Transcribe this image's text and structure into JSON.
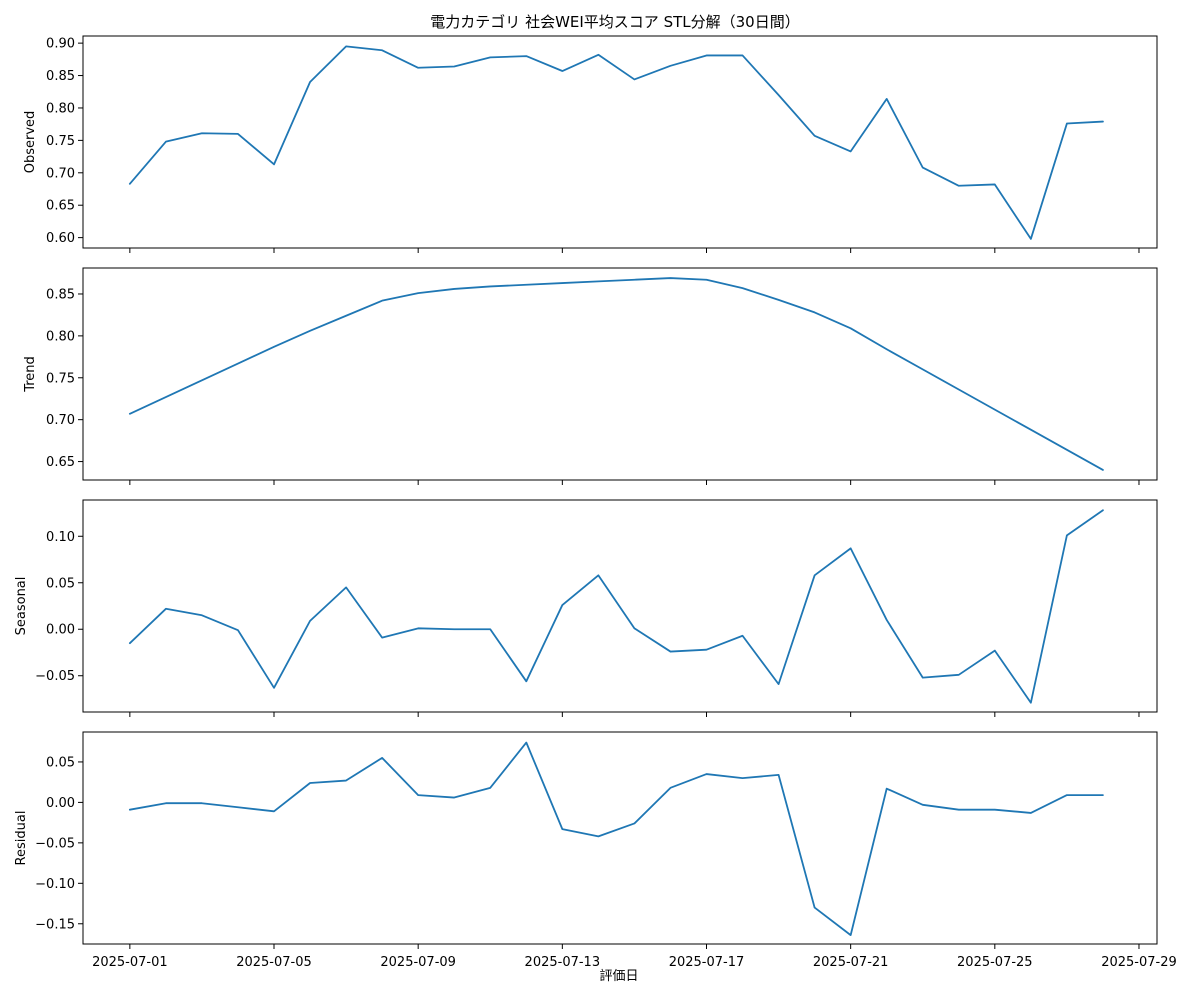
{
  "chart_data": {
    "type": "line",
    "title": "電力カテゴリ 社会WEI平均スコア STL分解（30日間）",
    "xlabel": "評価日",
    "line_color": "#1f77b4",
    "x": [
      "2025-07-01",
      "2025-07-02",
      "2025-07-03",
      "2025-07-04",
      "2025-07-05",
      "2025-07-06",
      "2025-07-07",
      "2025-07-08",
      "2025-07-09",
      "2025-07-10",
      "2025-07-11",
      "2025-07-12",
      "2025-07-13",
      "2025-07-14",
      "2025-07-15",
      "2025-07-16",
      "2025-07-17",
      "2025-07-18",
      "2025-07-19",
      "2025-07-20",
      "2025-07-21",
      "2025-07-22",
      "2025-07-23",
      "2025-07-24",
      "2025-07-25",
      "2025-07-26",
      "2025-07-27",
      "2025-07-28"
    ],
    "xlim": [
      "2025-06-29.7",
      "2025-07-29.5"
    ],
    "xticks": [
      "2025-07-01",
      "2025-07-05",
      "2025-07-09",
      "2025-07-13",
      "2025-07-17",
      "2025-07-21",
      "2025-07-25",
      "2025-07-29"
    ],
    "panels": [
      {
        "ylabel": "Observed",
        "ylim": [
          0.584,
          0.911
        ],
        "yticks": [
          0.6,
          0.65,
          0.7,
          0.75,
          0.8,
          0.85,
          0.9
        ],
        "ytick_labels": [
          "0.60",
          "0.65",
          "0.70",
          "0.75",
          "0.80",
          "0.85",
          "0.90"
        ],
        "values": [
          0.683,
          0.748,
          0.761,
          0.76,
          0.713,
          0.84,
          0.895,
          0.889,
          0.862,
          0.864,
          0.878,
          0.88,
          0.857,
          0.882,
          0.844,
          0.865,
          0.881,
          0.881,
          0.82,
          0.757,
          0.733,
          0.814,
          0.708,
          0.68,
          0.682,
          0.598,
          0.776,
          0.779
        ]
      },
      {
        "ylabel": "Trend",
        "ylim": [
          0.628,
          0.881
        ],
        "yticks": [
          0.65,
          0.7,
          0.75,
          0.8,
          0.85
        ],
        "ytick_labels": [
          "0.65",
          "0.70",
          "0.75",
          "0.80",
          "0.85"
        ],
        "values": [
          0.707,
          0.727,
          0.747,
          0.767,
          0.787,
          0.806,
          0.824,
          0.842,
          0.851,
          0.856,
          0.859,
          0.861,
          0.863,
          0.865,
          0.867,
          0.869,
          0.867,
          0.857,
          0.843,
          0.828,
          0.809,
          0.784,
          0.76,
          0.736,
          0.712,
          0.688,
          0.664,
          0.64
        ]
      },
      {
        "ylabel": "Seasonal",
        "ylim": [
          -0.089,
          0.139
        ],
        "yticks": [
          -0.05,
          0.0,
          0.05,
          0.1
        ],
        "ytick_labels": [
          "−0.05",
          "0.00",
          "0.05",
          "0.10"
        ],
        "values": [
          -0.015,
          0.022,
          0.015,
          -0.001,
          -0.063,
          0.009,
          0.045,
          -0.009,
          0.001,
          0.0,
          0.0,
          -0.056,
          0.026,
          0.058,
          0.001,
          -0.024,
          -0.022,
          -0.007,
          -0.059,
          0.058,
          0.087,
          0.01,
          -0.052,
          -0.049,
          -0.023,
          -0.079,
          0.101,
          0.128
        ]
      },
      {
        "ylabel": "Residual",
        "ylim": [
          -0.175,
          0.087
        ],
        "yticks": [
          -0.15,
          -0.1,
          -0.05,
          0.0,
          0.05
        ],
        "ytick_labels": [
          "−0.15",
          "−0.10",
          "−0.05",
          "0.00",
          "0.05"
        ],
        "values": [
          -0.009,
          -0.001,
          -0.001,
          -0.006,
          -0.011,
          0.024,
          0.027,
          0.055,
          0.009,
          0.006,
          0.018,
          0.074,
          -0.033,
          -0.042,
          -0.026,
          0.018,
          0.035,
          0.03,
          0.034,
          -0.13,
          -0.164,
          0.017,
          -0.003,
          -0.009,
          -0.009,
          -0.013,
          0.009,
          0.009
        ]
      }
    ]
  }
}
